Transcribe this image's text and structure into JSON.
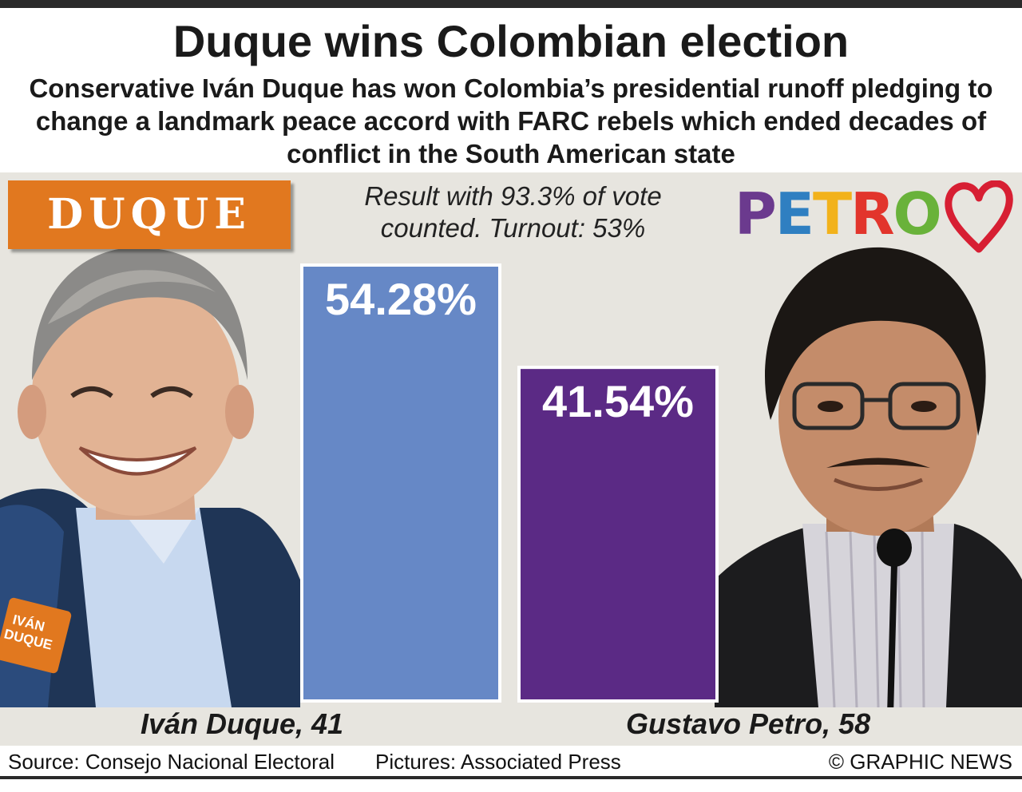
{
  "header": {
    "title": "Duque wins Colombian election",
    "subtitle": "Conservative Iván Duque has won Colombia’s presidential runoff pledging to change a landmark peace accord with FARC rebels which ended decades of conflict in the South American state"
  },
  "note": {
    "line1": "Result with 93.3% of vote",
    "line2": "counted. Turnout: 53%"
  },
  "logos": {
    "duque": "DUQUE",
    "petro_letters": [
      {
        "char": "P",
        "color": "#6b3a8e"
      },
      {
        "char": "E",
        "color": "#2f7fc1"
      },
      {
        "char": "T",
        "color": "#f2b21b"
      },
      {
        "char": "R",
        "color": "#e2352c"
      },
      {
        "char": "O",
        "color": "#69b23a"
      }
    ],
    "heart_color": "#d71f33"
  },
  "chart_data": {
    "type": "bar",
    "categories": [
      "Iván Duque, 41",
      "Gustavo Petro, 58"
    ],
    "values": [
      54.28,
      41.54
    ],
    "labels": [
      "54.28%",
      "41.54%"
    ],
    "colors": [
      "#6688c6",
      "#5b2a85"
    ],
    "ylim": [
      0,
      54.28
    ]
  },
  "candidates": {
    "duque": {
      "name": "Iván Duque, 41",
      "jacket_text_1": "IVÁN",
      "jacket_text_2": "DUQUE"
    },
    "petro": {
      "name": "Gustavo Petro, 58"
    }
  },
  "footer": {
    "source": "Source: Consejo Nacional Electoral",
    "pictures": "Pictures: Associated Press",
    "credit": "© GRAPHIC NEWS"
  }
}
